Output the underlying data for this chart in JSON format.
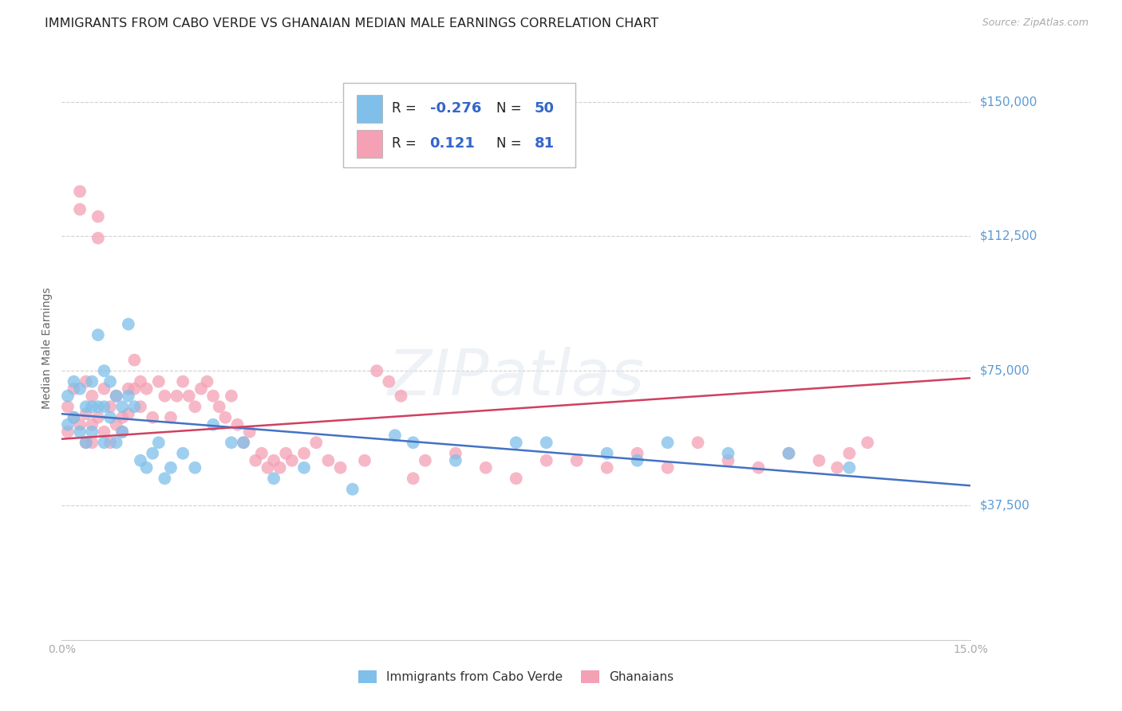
{
  "title": "IMMIGRANTS FROM CABO VERDE VS GHANAIAN MEDIAN MALE EARNINGS CORRELATION CHART",
  "source": "Source: ZipAtlas.com",
  "ylabel": "Median Male Earnings",
  "yticks": [
    0,
    37500,
    75000,
    112500,
    150000
  ],
  "ytick_labels": [
    "",
    "$37,500",
    "$75,000",
    "$112,500",
    "$150,000"
  ],
  "xlim": [
    0.0,
    0.15
  ],
  "ylim": [
    0,
    162500
  ],
  "watermark_text": "ZIPatlas",
  "cabo_verde": {
    "name": "Immigrants from Cabo Verde",
    "color": "#7fbfea",
    "R": -0.276,
    "N": 50,
    "x": [
      0.001,
      0.001,
      0.002,
      0.002,
      0.003,
      0.003,
      0.004,
      0.004,
      0.005,
      0.005,
      0.005,
      0.006,
      0.006,
      0.007,
      0.007,
      0.007,
      0.008,
      0.008,
      0.009,
      0.009,
      0.01,
      0.01,
      0.011,
      0.011,
      0.012,
      0.013,
      0.014,
      0.015,
      0.016,
      0.017,
      0.018,
      0.02,
      0.022,
      0.025,
      0.028,
      0.03,
      0.035,
      0.04,
      0.048,
      0.055,
      0.058,
      0.065,
      0.075,
      0.08,
      0.09,
      0.095,
      0.1,
      0.11,
      0.12,
      0.13
    ],
    "y": [
      68000,
      60000,
      72000,
      62000,
      70000,
      58000,
      65000,
      55000,
      72000,
      65000,
      58000,
      85000,
      65000,
      75000,
      65000,
      55000,
      72000,
      62000,
      68000,
      55000,
      65000,
      58000,
      88000,
      68000,
      65000,
      50000,
      48000,
      52000,
      55000,
      45000,
      48000,
      52000,
      48000,
      60000,
      55000,
      55000,
      45000,
      48000,
      42000,
      57000,
      55000,
      50000,
      55000,
      55000,
      52000,
      50000,
      55000,
      52000,
      52000,
      48000
    ],
    "trend_x": [
      0.0,
      0.15
    ],
    "trend_y": [
      63000,
      43000
    ]
  },
  "ghanaians": {
    "name": "Ghanaians",
    "color": "#f4a0b5",
    "R": 0.121,
    "N": 81,
    "x": [
      0.001,
      0.001,
      0.002,
      0.002,
      0.003,
      0.003,
      0.003,
      0.004,
      0.004,
      0.004,
      0.005,
      0.005,
      0.005,
      0.006,
      0.006,
      0.006,
      0.007,
      0.007,
      0.008,
      0.008,
      0.009,
      0.009,
      0.01,
      0.01,
      0.011,
      0.011,
      0.012,
      0.012,
      0.013,
      0.013,
      0.014,
      0.015,
      0.016,
      0.017,
      0.018,
      0.019,
      0.02,
      0.021,
      0.022,
      0.023,
      0.024,
      0.025,
      0.026,
      0.027,
      0.028,
      0.029,
      0.03,
      0.031,
      0.032,
      0.033,
      0.034,
      0.035,
      0.036,
      0.037,
      0.038,
      0.04,
      0.042,
      0.044,
      0.046,
      0.05,
      0.052,
      0.054,
      0.056,
      0.058,
      0.06,
      0.065,
      0.07,
      0.075,
      0.08,
      0.085,
      0.09,
      0.095,
      0.1,
      0.105,
      0.11,
      0.115,
      0.12,
      0.125,
      0.128,
      0.13,
      0.133
    ],
    "y": [
      65000,
      58000,
      70000,
      62000,
      125000,
      120000,
      60000,
      72000,
      63000,
      55000,
      68000,
      60000,
      55000,
      118000,
      112000,
      62000,
      70000,
      58000,
      65000,
      55000,
      60000,
      68000,
      62000,
      58000,
      70000,
      63000,
      78000,
      70000,
      72000,
      65000,
      70000,
      62000,
      72000,
      68000,
      62000,
      68000,
      72000,
      68000,
      65000,
      70000,
      72000,
      68000,
      65000,
      62000,
      68000,
      60000,
      55000,
      58000,
      50000,
      52000,
      48000,
      50000,
      48000,
      52000,
      50000,
      52000,
      55000,
      50000,
      48000,
      50000,
      75000,
      72000,
      68000,
      45000,
      50000,
      52000,
      48000,
      45000,
      50000,
      50000,
      48000,
      52000,
      48000,
      55000,
      50000,
      48000,
      52000,
      50000,
      48000,
      52000,
      55000
    ],
    "trend_x": [
      0.0,
      0.15
    ],
    "trend_y": [
      56000,
      73000
    ]
  },
  "legend_R_color": "#3366cc",
  "trend_blue": "#4472c4",
  "trend_pink": "#d04060",
  "title_fontsize": 11.5,
  "axis_label_color": "#5b9bd5",
  "grid_color": "#d0d0d0",
  "background_color": "#ffffff"
}
